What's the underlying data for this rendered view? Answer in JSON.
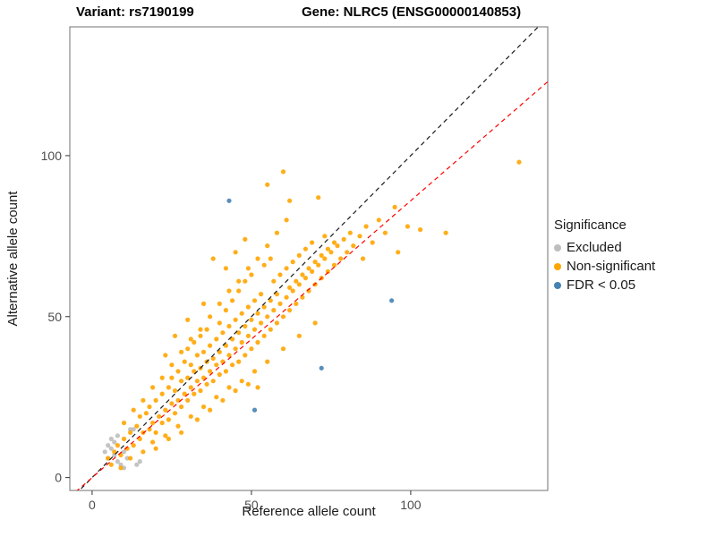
{
  "titles": {
    "variant": "Variant: rs7190199",
    "gene": "Gene: NLRC5 (ENSG00000140853)"
  },
  "chart_data": {
    "type": "scatter",
    "title": "Variant: rs7190199 — Gene: NLRC5 (ENSG00000140853)",
    "xlabel": "Reference allele count",
    "ylabel": "Alternative allele count",
    "xlim": [
      -7,
      143
    ],
    "ylim": [
      -4,
      140
    ],
    "xticks": [
      0,
      50,
      100
    ],
    "yticks": [
      0,
      50,
      100
    ],
    "grid": false,
    "legend": {
      "title": "Significance",
      "position": "right"
    },
    "lines": [
      {
        "name": "identity",
        "color": "#1a1a1a",
        "dash": true,
        "slope": 1,
        "intercept": 0
      },
      {
        "name": "fit",
        "color": "#ff0000",
        "dash": true,
        "slope": 0.86,
        "intercept": 0
      }
    ],
    "series": [
      {
        "name": "Excluded",
        "color": "#bebebe",
        "points": [
          [
            4,
            8
          ],
          [
            5,
            10
          ],
          [
            5,
            6
          ],
          [
            6,
            9
          ],
          [
            6,
            12
          ],
          [
            7,
            7
          ],
          [
            7,
            11
          ],
          [
            8,
            5
          ],
          [
            8,
            13
          ],
          [
            9,
            4
          ],
          [
            10,
            3
          ],
          [
            10,
            8
          ],
          [
            11,
            6
          ],
          [
            12,
            15
          ],
          [
            13,
            15
          ],
          [
            14,
            4
          ],
          [
            15,
            5
          ]
        ]
      },
      {
        "name": "Non-significant",
        "color": "#ffa500",
        "points": [
          [
            5,
            6
          ],
          [
            6,
            4
          ],
          [
            7,
            8
          ],
          [
            8,
            10
          ],
          [
            9,
            7
          ],
          [
            10,
            12
          ],
          [
            11,
            9
          ],
          [
            12,
            14
          ],
          [
            13,
            10
          ],
          [
            14,
            16
          ],
          [
            15,
            12
          ],
          [
            15,
            19
          ],
          [
            16,
            14
          ],
          [
            17,
            20
          ],
          [
            18,
            15
          ],
          [
            18,
            22
          ],
          [
            19,
            17
          ],
          [
            20,
            24
          ],
          [
            20,
            14
          ],
          [
            21,
            19
          ],
          [
            22,
            26
          ],
          [
            22,
            17
          ],
          [
            23,
            21
          ],
          [
            24,
            28
          ],
          [
            24,
            18
          ],
          [
            25,
            23
          ],
          [
            25,
            31
          ],
          [
            26,
            20
          ],
          [
            26,
            27
          ],
          [
            27,
            24
          ],
          [
            27,
            33
          ],
          [
            28,
            22
          ],
          [
            28,
            30
          ],
          [
            29,
            26
          ],
          [
            29,
            36
          ],
          [
            30,
            24
          ],
          [
            30,
            31
          ],
          [
            30,
            40
          ],
          [
            31,
            28
          ],
          [
            31,
            35
          ],
          [
            32,
            26
          ],
          [
            32,
            33
          ],
          [
            32,
            42
          ],
          [
            33,
            30
          ],
          [
            33,
            38
          ],
          [
            34,
            27
          ],
          [
            34,
            34
          ],
          [
            34,
            44
          ],
          [
            35,
            31
          ],
          [
            35,
            39
          ],
          [
            36,
            29
          ],
          [
            36,
            36
          ],
          [
            36,
            46
          ],
          [
            37,
            33
          ],
          [
            37,
            41
          ],
          [
            38,
            30
          ],
          [
            38,
            37
          ],
          [
            38,
            68
          ],
          [
            39,
            35
          ],
          [
            39,
            43
          ],
          [
            40,
            32
          ],
          [
            40,
            39
          ],
          [
            40,
            48
          ],
          [
            41,
            36
          ],
          [
            41,
            45
          ],
          [
            42,
            33
          ],
          [
            42,
            41
          ],
          [
            42,
            52
          ],
          [
            43,
            38
          ],
          [
            43,
            47
          ],
          [
            44,
            35
          ],
          [
            44,
            43
          ],
          [
            44,
            55
          ],
          [
            45,
            40
          ],
          [
            45,
            49
          ],
          [
            46,
            36
          ],
          [
            46,
            45
          ],
          [
            46,
            58
          ],
          [
            47,
            42
          ],
          [
            47,
            51
          ],
          [
            48,
            38
          ],
          [
            48,
            47
          ],
          [
            48,
            61
          ],
          [
            49,
            44
          ],
          [
            49,
            53
          ],
          [
            50,
            40
          ],
          [
            50,
            49
          ],
          [
            50,
            63
          ],
          [
            51,
            46
          ],
          [
            51,
            55
          ],
          [
            52,
            28
          ],
          [
            52,
            42
          ],
          [
            52,
            51
          ],
          [
            53,
            48
          ],
          [
            53,
            57
          ],
          [
            54,
            44
          ],
          [
            54,
            53
          ],
          [
            54,
            66
          ],
          [
            55,
            50
          ],
          [
            55,
            91
          ],
          [
            56,
            46
          ],
          [
            56,
            55
          ],
          [
            56,
            68
          ],
          [
            57,
            52
          ],
          [
            57,
            61
          ],
          [
            58,
            48
          ],
          [
            58,
            57
          ],
          [
            59,
            54
          ],
          [
            59,
            63
          ],
          [
            60,
            50
          ],
          [
            60,
            95
          ],
          [
            61,
            56
          ],
          [
            61,
            65
          ],
          [
            62,
            52
          ],
          [
            62,
            59
          ],
          [
            62,
            86
          ],
          [
            63,
            58
          ],
          [
            63,
            67
          ],
          [
            64,
            54
          ],
          [
            64,
            61
          ],
          [
            65,
            60
          ],
          [
            65,
            69
          ],
          [
            66,
            56
          ],
          [
            66,
            63
          ],
          [
            67,
            62
          ],
          [
            67,
            71
          ],
          [
            68,
            58
          ],
          [
            68,
            65
          ],
          [
            69,
            64
          ],
          [
            69,
            73
          ],
          [
            70,
            60
          ],
          [
            70,
            67
          ],
          [
            71,
            66
          ],
          [
            71,
            87
          ],
          [
            72,
            62
          ],
          [
            72,
            69
          ],
          [
            73,
            68
          ],
          [
            73,
            75
          ],
          [
            74,
            64
          ],
          [
            74,
            71
          ],
          [
            75,
            70
          ],
          [
            76,
            66
          ],
          [
            76,
            73
          ],
          [
            77,
            72
          ],
          [
            78,
            68
          ],
          [
            79,
            74
          ],
          [
            80,
            70
          ],
          [
            81,
            76
          ],
          [
            82,
            72
          ],
          [
            84,
            75
          ],
          [
            85,
            68
          ],
          [
            86,
            78
          ],
          [
            88,
            73
          ],
          [
            90,
            80
          ],
          [
            92,
            76
          ],
          [
            95,
            84
          ],
          [
            96,
            70
          ],
          [
            99,
            78
          ],
          [
            103,
            77
          ],
          [
            111,
            76
          ],
          [
            134,
            98
          ],
          [
            9,
            3
          ],
          [
            12,
            6
          ],
          [
            16,
            8
          ],
          [
            19,
            11
          ],
          [
            23,
            13
          ],
          [
            27,
            16
          ],
          [
            31,
            19
          ],
          [
            35,
            22
          ],
          [
            39,
            25
          ],
          [
            43,
            28
          ],
          [
            47,
            30
          ],
          [
            51,
            33
          ],
          [
            55,
            36
          ],
          [
            60,
            40
          ],
          [
            65,
            44
          ],
          [
            70,
            48
          ],
          [
            33,
            18
          ],
          [
            37,
            21
          ],
          [
            41,
            24
          ],
          [
            45,
            27
          ],
          [
            49,
            29
          ],
          [
            28,
            14
          ],
          [
            24,
            12
          ],
          [
            20,
            9
          ],
          [
            10,
            17
          ],
          [
            13,
            21
          ],
          [
            16,
            24
          ],
          [
            19,
            28
          ],
          [
            22,
            31
          ],
          [
            25,
            35
          ],
          [
            28,
            39
          ],
          [
            31,
            43
          ],
          [
            34,
            46
          ],
          [
            37,
            50
          ],
          [
            40,
            54
          ],
          [
            43,
            58
          ],
          [
            46,
            61
          ],
          [
            49,
            65
          ],
          [
            52,
            68
          ],
          [
            55,
            72
          ],
          [
            58,
            76
          ],
          [
            61,
            80
          ],
          [
            26,
            44
          ],
          [
            30,
            49
          ],
          [
            35,
            54
          ],
          [
            23,
            38
          ],
          [
            45,
            70
          ],
          [
            48,
            74
          ],
          [
            42,
            65
          ]
        ]
      },
      {
        "name": "FDR < 0.05",
        "color": "#4682b4",
        "points": [
          [
            43,
            86
          ],
          [
            94,
            55
          ],
          [
            72,
            34
          ],
          [
            51,
            21
          ]
        ]
      }
    ]
  }
}
